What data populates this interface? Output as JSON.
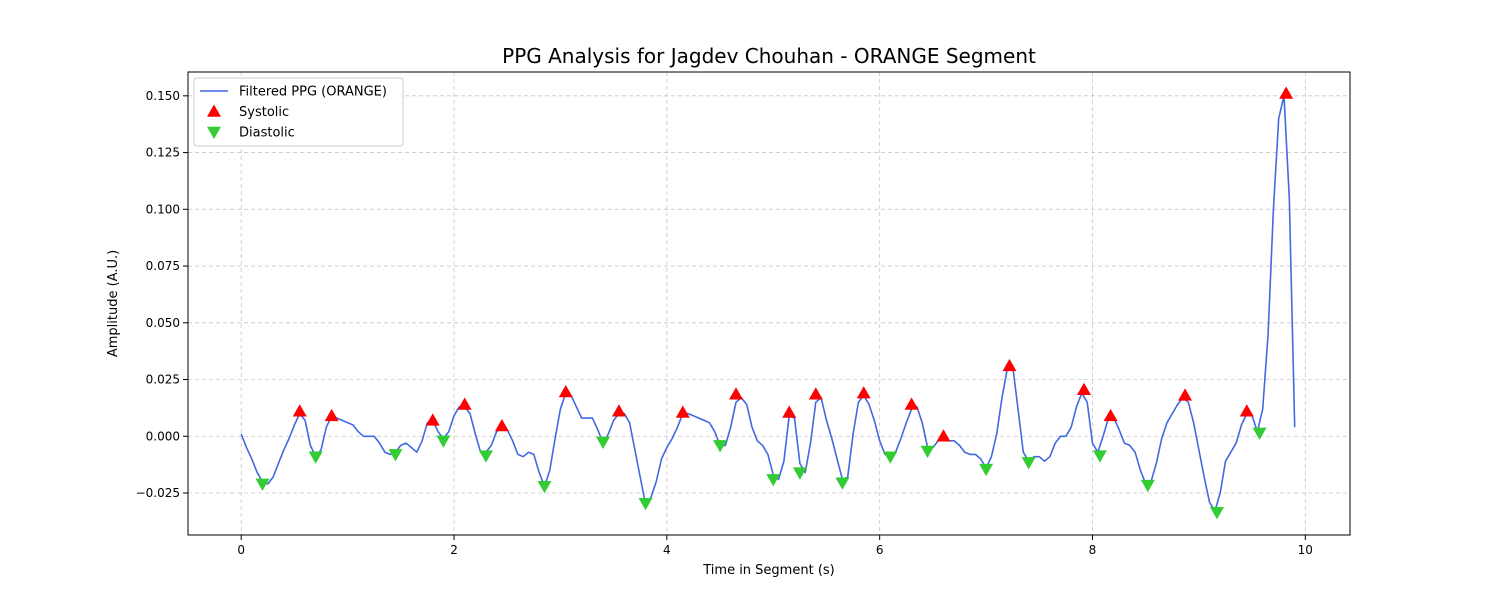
{
  "chart_data": {
    "type": "line",
    "title": "PPG Analysis for Jagdev Chouhan - ORANGE Segment",
    "xlabel": "Time in Segment (s)",
    "ylabel": "Amplitude (A.U.)",
    "xlim": [
      -0.5,
      10.42
    ],
    "ylim": [
      -0.0435,
      0.1605
    ],
    "xticks": [
      0,
      2,
      4,
      6,
      8,
      10
    ],
    "yticks": [
      -0.025,
      0.0,
      0.025,
      0.05,
      0.075,
      0.1,
      0.125,
      0.15
    ],
    "xtick_labels": [
      "0",
      "2",
      "4",
      "6",
      "8",
      "10"
    ],
    "ytick_labels": [
      "−0.025",
      "0.000",
      "0.025",
      "0.050",
      "0.075",
      "0.100",
      "0.125",
      "0.150"
    ],
    "grid": true,
    "legend_position": "upper-left",
    "colors": {
      "line": "#4169e1",
      "systolic": "#ff0000",
      "diastolic": "#32cd32"
    },
    "series": [
      {
        "name": "Filtered PPG (ORANGE)",
        "kind": "line",
        "points": [
          [
            0.0,
            0.001
          ],
          [
            0.05,
            -0.005
          ],
          [
            0.1,
            -0.01
          ],
          [
            0.15,
            -0.016
          ],
          [
            0.2,
            -0.02
          ],
          [
            0.25,
            -0.021
          ],
          [
            0.3,
            -0.018
          ],
          [
            0.35,
            -0.012
          ],
          [
            0.4,
            -0.006
          ],
          [
            0.45,
            -0.001
          ],
          [
            0.5,
            0.005
          ],
          [
            0.55,
            0.01
          ],
          [
            0.6,
            0.007
          ],
          [
            0.65,
            -0.004
          ],
          [
            0.7,
            -0.009
          ],
          [
            0.75,
            -0.006
          ],
          [
            0.8,
            0.004
          ],
          [
            0.85,
            0.009
          ],
          [
            0.9,
            0.008
          ],
          [
            0.95,
            0.007
          ],
          [
            1.0,
            0.006
          ],
          [
            1.05,
            0.005
          ],
          [
            1.1,
            0.002
          ],
          [
            1.15,
            0.0
          ],
          [
            1.2,
            0.0
          ],
          [
            1.25,
            0.0
          ],
          [
            1.3,
            -0.003
          ],
          [
            1.35,
            -0.007
          ],
          [
            1.4,
            -0.008
          ],
          [
            1.45,
            -0.007
          ],
          [
            1.5,
            -0.004
          ],
          [
            1.55,
            -0.003
          ],
          [
            1.6,
            -0.005
          ],
          [
            1.65,
            -0.007
          ],
          [
            1.7,
            -0.002
          ],
          [
            1.75,
            0.006
          ],
          [
            1.8,
            0.007
          ],
          [
            1.85,
            0.002
          ],
          [
            1.9,
            -0.001
          ],
          [
            1.95,
            0.002
          ],
          [
            2.0,
            0.009
          ],
          [
            2.05,
            0.013
          ],
          [
            2.1,
            0.013
          ],
          [
            2.15,
            0.01
          ],
          [
            2.2,
            0.001
          ],
          [
            2.25,
            -0.007
          ],
          [
            2.3,
            -0.007
          ],
          [
            2.35,
            -0.004
          ],
          [
            2.4,
            0.002
          ],
          [
            2.45,
            0.004
          ],
          [
            2.5,
            0.003
          ],
          [
            2.55,
            -0.002
          ],
          [
            2.6,
            -0.008
          ],
          [
            2.65,
            -0.009
          ],
          [
            2.7,
            -0.007
          ],
          [
            2.75,
            -0.008
          ],
          [
            2.8,
            -0.016
          ],
          [
            2.85,
            -0.022
          ],
          [
            2.9,
            -0.015
          ],
          [
            2.95,
            -0.001
          ],
          [
            3.0,
            0.012
          ],
          [
            3.05,
            0.019
          ],
          [
            3.1,
            0.018
          ],
          [
            3.15,
            0.013
          ],
          [
            3.2,
            0.008
          ],
          [
            3.25,
            0.008
          ],
          [
            3.3,
            0.008
          ],
          [
            3.35,
            0.003
          ],
          [
            3.4,
            -0.003
          ],
          [
            3.45,
            0.001
          ],
          [
            3.5,
            0.007
          ],
          [
            3.55,
            0.01
          ],
          [
            3.6,
            0.01
          ],
          [
            3.65,
            0.006
          ],
          [
            3.7,
            -0.006
          ],
          [
            3.75,
            -0.018
          ],
          [
            3.8,
            -0.03
          ],
          [
            3.85,
            -0.027
          ],
          [
            3.9,
            -0.02
          ],
          [
            3.95,
            -0.01
          ],
          [
            4.0,
            -0.005
          ],
          [
            4.05,
            -0.001
          ],
          [
            4.1,
            0.004
          ],
          [
            4.15,
            0.01
          ],
          [
            4.2,
            0.01
          ],
          [
            4.25,
            0.009
          ],
          [
            4.3,
            0.008
          ],
          [
            4.35,
            0.007
          ],
          [
            4.4,
            0.006
          ],
          [
            4.45,
            0.002
          ],
          [
            4.5,
            -0.004
          ],
          [
            4.55,
            -0.004
          ],
          [
            4.6,
            0.004
          ],
          [
            4.65,
            0.015
          ],
          [
            4.7,
            0.017
          ],
          [
            4.75,
            0.014
          ],
          [
            4.8,
            0.004
          ],
          [
            4.85,
            -0.002
          ],
          [
            4.9,
            -0.004
          ],
          [
            4.95,
            -0.008
          ],
          [
            5.0,
            -0.017
          ],
          [
            5.05,
            -0.019
          ],
          [
            5.1,
            -0.011
          ],
          [
            5.15,
            0.009
          ],
          [
            5.2,
            0.008
          ],
          [
            5.25,
            -0.012
          ],
          [
            5.3,
            -0.016
          ],
          [
            5.35,
            -0.003
          ],
          [
            5.4,
            0.015
          ],
          [
            5.45,
            0.017
          ],
          [
            5.5,
            0.007
          ],
          [
            5.55,
            -0.001
          ],
          [
            5.6,
            -0.01
          ],
          [
            5.65,
            -0.019
          ],
          [
            5.7,
            -0.018
          ],
          [
            5.75,
            0.001
          ],
          [
            5.8,
            0.015
          ],
          [
            5.85,
            0.018
          ],
          [
            5.9,
            0.014
          ],
          [
            5.95,
            0.007
          ],
          [
            6.0,
            -0.002
          ],
          [
            6.05,
            -0.008
          ],
          [
            6.1,
            -0.009
          ],
          [
            6.15,
            -0.007
          ],
          [
            6.2,
            -0.001
          ],
          [
            6.25,
            0.006
          ],
          [
            6.3,
            0.012
          ],
          [
            6.35,
            0.013
          ],
          [
            6.4,
            0.006
          ],
          [
            6.45,
            -0.005
          ],
          [
            6.5,
            -0.005
          ],
          [
            6.55,
            -0.002
          ],
          [
            6.6,
            0.0
          ],
          [
            6.65,
            -0.002
          ],
          [
            6.7,
            -0.002
          ],
          [
            6.75,
            -0.004
          ],
          [
            6.8,
            -0.007
          ],
          [
            6.85,
            -0.008
          ],
          [
            6.9,
            -0.008
          ],
          [
            6.95,
            -0.01
          ],
          [
            7.0,
            -0.014
          ],
          [
            7.05,
            -0.009
          ],
          [
            7.1,
            0.001
          ],
          [
            7.15,
            0.017
          ],
          [
            7.2,
            0.03
          ],
          [
            7.25,
            0.031
          ],
          [
            7.3,
            0.012
          ],
          [
            7.35,
            -0.007
          ],
          [
            7.4,
            -0.011
          ],
          [
            7.45,
            -0.009
          ],
          [
            7.5,
            -0.009
          ],
          [
            7.55,
            -0.011
          ],
          [
            7.6,
            -0.009
          ],
          [
            7.65,
            -0.003
          ],
          [
            7.7,
            0.0
          ],
          [
            7.75,
            0.0
          ],
          [
            7.8,
            0.004
          ],
          [
            7.85,
            0.013
          ],
          [
            7.9,
            0.019
          ],
          [
            7.95,
            0.015
          ],
          [
            8.0,
            -0.003
          ],
          [
            8.05,
            -0.007
          ],
          [
            8.1,
            0.0
          ],
          [
            8.15,
            0.008
          ],
          [
            8.2,
            0.008
          ],
          [
            8.25,
            0.003
          ],
          [
            8.3,
            -0.003
          ],
          [
            8.35,
            -0.004
          ],
          [
            8.4,
            -0.007
          ],
          [
            8.45,
            -0.015
          ],
          [
            8.5,
            -0.021
          ],
          [
            8.55,
            -0.02
          ],
          [
            8.6,
            -0.012
          ],
          [
            8.65,
            -0.001
          ],
          [
            8.7,
            0.006
          ],
          [
            8.75,
            0.01
          ],
          [
            8.8,
            0.014
          ],
          [
            8.85,
            0.017
          ],
          [
            8.9,
            0.015
          ],
          [
            8.95,
            0.006
          ],
          [
            9.0,
            -0.006
          ],
          [
            9.05,
            -0.018
          ],
          [
            9.1,
            -0.029
          ],
          [
            9.15,
            -0.033
          ],
          [
            9.2,
            -0.025
          ],
          [
            9.25,
            -0.011
          ],
          [
            9.3,
            -0.007
          ],
          [
            9.35,
            -0.003
          ],
          [
            9.4,
            0.005
          ],
          [
            9.45,
            0.01
          ],
          [
            9.5,
            0.009
          ],
          [
            9.55,
            0.002
          ],
          [
            9.6,
            0.012
          ],
          [
            9.65,
            0.045
          ],
          [
            9.7,
            0.1
          ],
          [
            9.75,
            0.14
          ],
          [
            9.8,
            0.15
          ],
          [
            9.85,
            0.105
          ],
          [
            9.9,
            0.004
          ]
        ]
      },
      {
        "name": "Systolic",
        "kind": "marker-up",
        "points": [
          [
            0.55,
            0.011
          ],
          [
            0.85,
            0.009
          ],
          [
            1.8,
            0.007
          ],
          [
            2.1,
            0.014
          ],
          [
            2.45,
            0.0045
          ],
          [
            3.05,
            0.0195
          ],
          [
            3.55,
            0.011
          ],
          [
            4.15,
            0.0105
          ],
          [
            4.65,
            0.0185
          ],
          [
            5.15,
            0.0105
          ],
          [
            5.4,
            0.0185
          ],
          [
            5.85,
            0.019
          ],
          [
            6.3,
            0.014
          ],
          [
            6.6,
            0.0
          ],
          [
            7.22,
            0.031
          ],
          [
            7.92,
            0.0205
          ],
          [
            8.17,
            0.009
          ],
          [
            8.87,
            0.018
          ],
          [
            9.45,
            0.011
          ],
          [
            9.82,
            0.151
          ]
        ]
      },
      {
        "name": "Diastolic",
        "kind": "marker-down",
        "points": [
          [
            0.2,
            -0.021
          ],
          [
            0.7,
            -0.009
          ],
          [
            1.45,
            -0.008
          ],
          [
            1.9,
            -0.002
          ],
          [
            2.3,
            -0.0085
          ],
          [
            2.85,
            -0.022
          ],
          [
            3.4,
            -0.0025
          ],
          [
            3.8,
            -0.0295
          ],
          [
            4.5,
            -0.004
          ],
          [
            5.0,
            -0.019
          ],
          [
            5.25,
            -0.016
          ],
          [
            5.65,
            -0.0205
          ],
          [
            6.1,
            -0.009
          ],
          [
            6.45,
            -0.0065
          ],
          [
            7.0,
            -0.0145
          ],
          [
            7.4,
            -0.0115
          ],
          [
            8.07,
            -0.0085
          ],
          [
            8.52,
            -0.0215
          ],
          [
            9.17,
            -0.0335
          ],
          [
            9.57,
            0.0015
          ]
        ]
      }
    ]
  }
}
